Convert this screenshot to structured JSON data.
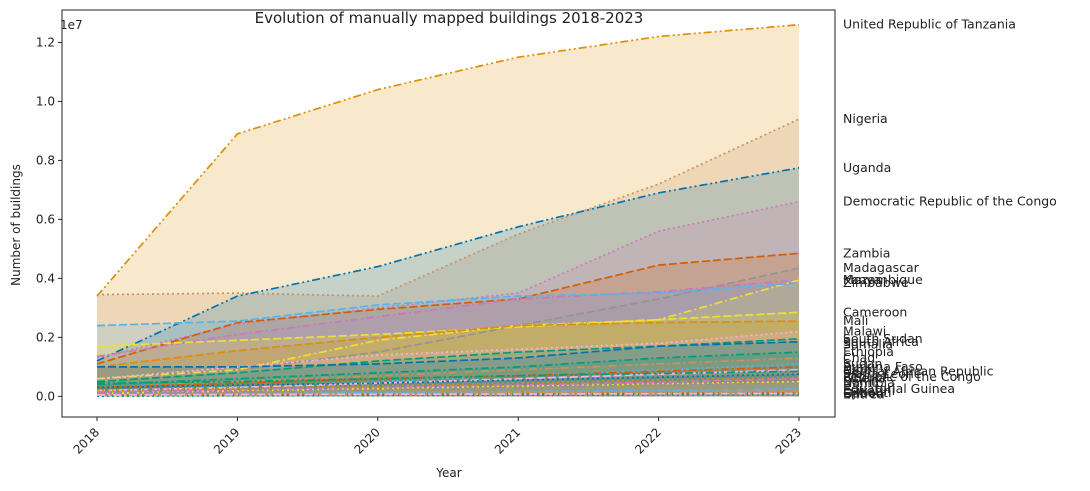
{
  "chart_data": {
    "type": "area",
    "title": "Evolution of manually mapped buildings 2018-2023",
    "xlabel": "Year",
    "ylabel": "Number of buildings",
    "y_multiplier_label": "1e7",
    "x": [
      "2018",
      "2019",
      "2020",
      "2021",
      "2022",
      "2023"
    ],
    "x_tick_labels": [
      "2018",
      "2019",
      "2020",
      "2021",
      "2022",
      "2023"
    ],
    "y_tick_labels": [
      "0.0",
      "0.2",
      "0.4",
      "0.6",
      "0.8",
      "1.0",
      "1.2"
    ],
    "y_ticks": [
      0,
      2000000,
      4000000,
      6000000,
      8000000,
      10000000,
      12000000
    ],
    "ylim": [
      -700000,
      13100000
    ],
    "grid": false,
    "legend": "none",
    "series": [
      {
        "name": "United Republic of Tanzania",
        "values": [
          3400000,
          8900000,
          10400000,
          11500000,
          12200000,
          12600000
        ],
        "color": "#de8f05",
        "dash": "8 3 2 3 2 3"
      },
      {
        "name": "Nigeria",
        "values": [
          3450000,
          3500000,
          3400000,
          5500000,
          7200000,
          9400000
        ],
        "color": "#ca9161",
        "dash": "2 3"
      },
      {
        "name": "Uganda",
        "values": [
          1200000,
          3400000,
          4400000,
          5750000,
          6900000,
          7750000
        ],
        "color": "#0173b2",
        "dash": "8 3 2 3 2 3"
      },
      {
        "name": "Democratic Republic of the Congo",
        "values": [
          1300000,
          2450000,
          3000000,
          3500000,
          5600000,
          6600000
        ],
        "color": "#cc78bc",
        "dash": "2 3"
      },
      {
        "name": "Zambia",
        "values": [
          1100000,
          2500000,
          2950000,
          3300000,
          4450000,
          4850000
        ],
        "color": "#d55e00",
        "dash": "8 3"
      },
      {
        "name": "Madagascar",
        "values": [
          600000,
          900000,
          1500000,
          2400000,
          3300000,
          4350000
        ],
        "color": "#949494",
        "dash": "8 3"
      },
      {
        "name": "Kenya",
        "values": [
          1350000,
          2100000,
          2700000,
          3300000,
          3550000,
          3950000
        ],
        "color": "#cc78bc",
        "dash": "8 3 2 3"
      },
      {
        "name": "Mozambique",
        "values": [
          600000,
          900000,
          1900000,
          2400000,
          2600000,
          3950000
        ],
        "color": "#ece133",
        "dash": "8 3 2 3"
      },
      {
        "name": "Zimbabwe",
        "values": [
          2400000,
          2550000,
          3100000,
          3400000,
          3500000,
          3850000
        ],
        "color": "#56b4e9",
        "dash": "8 3"
      },
      {
        "name": "Cameroon",
        "values": [
          1700000,
          1900000,
          2100000,
          2350000,
          2600000,
          2850000
        ],
        "color": "#ece133",
        "dash": "8 3"
      },
      {
        "name": "Mali",
        "values": [
          1000000,
          1550000,
          2000000,
          2400000,
          2500000,
          2550000
        ],
        "color": "#de8f05",
        "dash": "8 3"
      },
      {
        "name": "Malawi",
        "values": [
          600000,
          1000000,
          1400000,
          1600000,
          1800000,
          2200000
        ],
        "color": "#fbafe4",
        "dash": "2 3"
      },
      {
        "name": "South Sudan",
        "values": [
          500000,
          800000,
          1200000,
          1500000,
          1700000,
          1950000
        ],
        "color": "#029e73",
        "dash": "8 3"
      },
      {
        "name": "South Africa",
        "values": [
          1000000,
          1000000,
          1100000,
          1300000,
          1700000,
          1850000
        ],
        "color": "#0173b2",
        "dash": "8 3"
      },
      {
        "name": "Somalia",
        "values": [
          300000,
          500000,
          800000,
          1100000,
          1400000,
          1750000
        ],
        "color": "#949494",
        "dash": "2 3"
      },
      {
        "name": "Ethiopia",
        "values": [
          400000,
          600000,
          800000,
          1000000,
          1300000,
          1500000
        ],
        "color": "#029e73",
        "dash": "8 3 2 3"
      },
      {
        "name": "Chad",
        "values": [
          300000,
          500000,
          700000,
          900000,
          1100000,
          1300000
        ],
        "color": "#ca9161",
        "dash": "8 3 2 3"
      },
      {
        "name": "Sudan",
        "values": [
          200000,
          350000,
          500000,
          700000,
          900000,
          1100000
        ],
        "color": "#56b4e9",
        "dash": "2 3"
      },
      {
        "name": "Burkina Faso",
        "values": [
          300000,
          450000,
          600000,
          700000,
          850000,
          1000000
        ],
        "color": "#d55e00",
        "dash": "8 3 2 3"
      },
      {
        "name": "Niger",
        "values": [
          200000,
          300000,
          450000,
          600000,
          750000,
          900000
        ],
        "color": "#fbafe4",
        "dash": "8 3"
      },
      {
        "name": "Central African Republic",
        "values": [
          450000,
          500000,
          600000,
          700000,
          780000,
          850000
        ],
        "color": "#029e73",
        "dash": "8 3 2 3 2 3"
      },
      {
        "name": "Sierra Leone",
        "values": [
          300000,
          380000,
          450000,
          550000,
          650000,
          750000
        ],
        "color": "#0173b2",
        "dash": "2 3"
      },
      {
        "name": "Republic of the Congo",
        "values": [
          200000,
          280000,
          360000,
          450000,
          560000,
          650000
        ],
        "color": "#de8f05",
        "dash": "2 3"
      },
      {
        "name": "Liberia",
        "values": [
          150000,
          220000,
          300000,
          380000,
          480000,
          600000
        ],
        "color": "#cc78bc",
        "dash": "8 3"
      },
      {
        "name": "Benin",
        "values": [
          100000,
          180000,
          260000,
          340000,
          420000,
          500000
        ],
        "color": "#ece133",
        "dash": "2 3"
      },
      {
        "name": "Namibia",
        "values": [
          100000,
          150000,
          220000,
          300000,
          380000,
          450000
        ],
        "color": "#949494",
        "dash": "8 3 2 3"
      },
      {
        "name": "Equatorial Guinea",
        "values": [
          50000,
          80000,
          120000,
          160000,
          200000,
          250000
        ],
        "color": "#56b4e9",
        "dash": "8 3 2 3"
      },
      {
        "name": "Eswatini",
        "values": [
          30000,
          60000,
          90000,
          120000,
          150000,
          180000
        ],
        "color": "#ca9161",
        "dash": "8 3"
      },
      {
        "name": "Djibouti",
        "values": [
          20000,
          40000,
          60000,
          80000,
          100000,
          120000
        ],
        "color": "#d55e00",
        "dash": "2 3"
      },
      {
        "name": "Eritrea",
        "values": [
          10000,
          20000,
          30000,
          40000,
          50000,
          60000
        ],
        "color": "#029e73",
        "dash": "2 3"
      },
      {
        "name": "Gabon",
        "values": [
          50000,
          60000,
          70000,
          80000,
          90000,
          100000
        ],
        "color": "#fbafe4",
        "dash": "8 3 2 3"
      }
    ]
  }
}
